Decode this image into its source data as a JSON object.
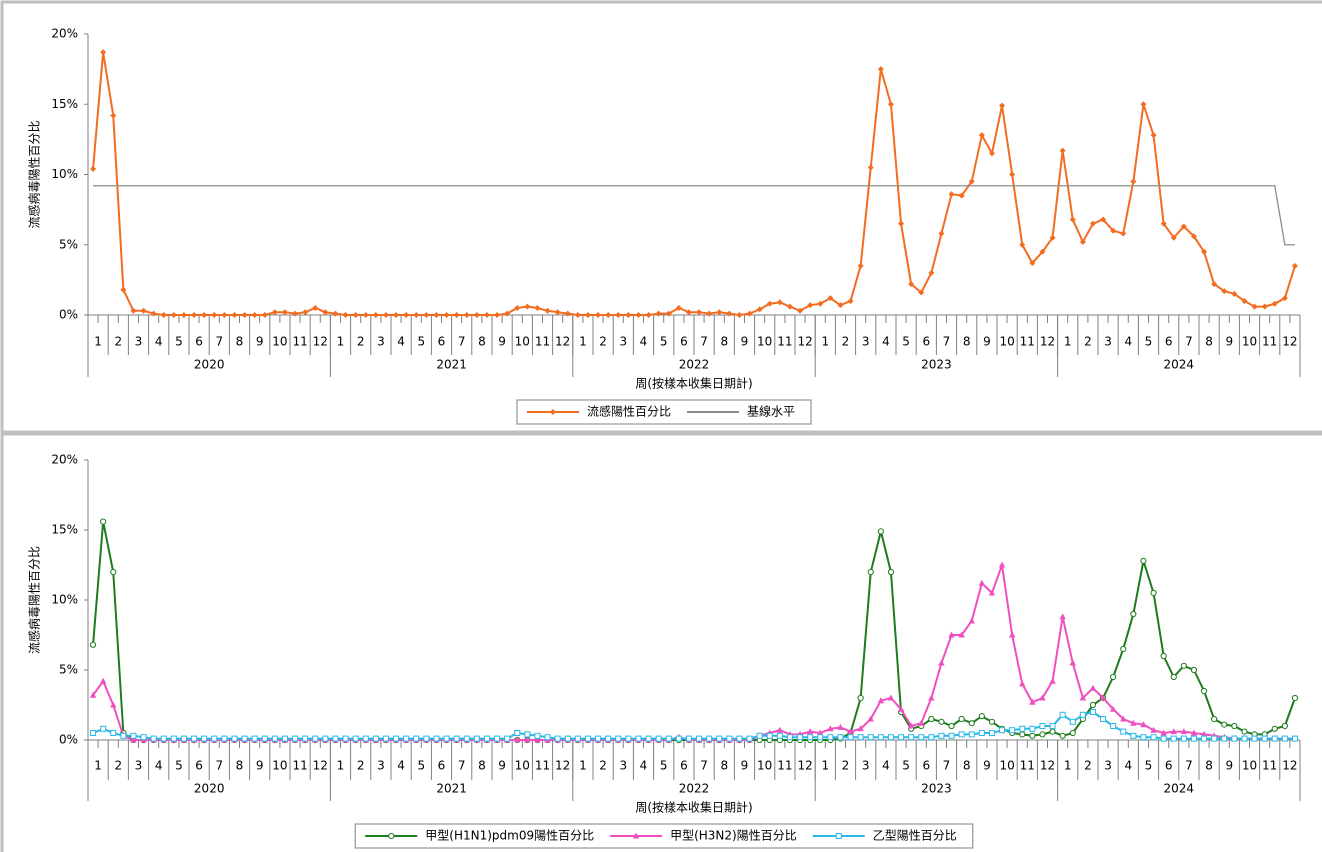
{
  "chart_data": [
    {
      "type": "line",
      "y_label": "流感病毒陽性百分比",
      "x_label": "周(按樣本收集日期計)",
      "categories": [
        "1",
        null,
        "2",
        null,
        "3",
        null,
        "4",
        null,
        "5",
        null,
        "6",
        null,
        "7",
        null,
        "8",
        null,
        "9",
        null,
        "10",
        null,
        "11",
        null,
        "12",
        null,
        "1",
        null,
        "2",
        null,
        "3",
        null,
        "4",
        null,
        "5",
        null,
        "6",
        null,
        "7",
        null,
        "8",
        null,
        "9",
        null,
        "10",
        null,
        "11",
        null,
        "12",
        null,
        "1",
        null,
        "2",
        null,
        "3",
        null,
        "4",
        null,
        "5",
        null,
        "6",
        null,
        "7",
        null,
        "8",
        null,
        "9",
        null,
        "10",
        null,
        "11",
        null,
        "12",
        null,
        "1",
        null,
        "2",
        null,
        "3",
        null,
        "4",
        null,
        "5",
        null,
        "6",
        null,
        "7",
        null,
        "8",
        null,
        "9",
        null,
        "10",
        null,
        "11",
        null,
        "12",
        null,
        "1",
        null,
        "2",
        null,
        "3",
        null,
        "4",
        null,
        "5",
        null,
        "6",
        null,
        "7",
        null,
        "8",
        null,
        "9",
        null,
        "10",
        null,
        "11",
        null,
        "12",
        null
      ],
      "x_groups": [
        "2020",
        "2021",
        "2022",
        "2023",
        "2024"
      ],
      "ylim": [
        0,
        20
      ],
      "yticks": [
        {
          "value": 0,
          "label": "0%"
        },
        {
          "value": 5,
          "label": "5%"
        },
        {
          "value": 10,
          "label": "10%"
        },
        {
          "value": 15,
          "label": "15%"
        },
        {
          "value": 20,
          "label": "20%"
        }
      ],
      "series": [
        {
          "name": "流感陽性百分比",
          "color": "#f26d21",
          "marker": "diamond",
          "values": [
            10.4,
            18.7,
            14.2,
            1.8,
            0.3,
            0.3,
            0.1,
            0,
            0,
            0,
            0,
            0,
            0,
            0,
            0,
            0,
            0,
            0,
            0.2,
            0.2,
            0.1,
            0.2,
            0.5,
            0.2,
            0.1,
            0,
            0,
            0,
            0,
            0,
            0,
            0,
            0,
            0,
            0,
            0,
            0,
            0,
            0,
            0,
            0,
            0.1,
            0.5,
            0.6,
            0.5,
            0.3,
            0.2,
            0.1,
            0,
            0,
            0,
            0,
            0,
            0,
            0,
            0,
            0.1,
            0.1,
            0.5,
            0.2,
            0.2,
            0.1,
            0.2,
            0.1,
            0,
            0.1,
            0.4,
            0.8,
            0.9,
            0.6,
            0.3,
            0.7,
            0.8,
            1.2,
            0.7,
            1,
            3.5,
            10.5,
            17.5,
            15,
            6.5,
            2.2,
            1.6,
            3,
            5.8,
            8.6,
            8.5,
            9.5,
            12.8,
            11.5,
            14.9,
            10,
            5,
            3.7,
            4.5,
            5.5,
            11.7,
            6.8,
            5.2,
            6.5,
            6.8,
            6,
            5.8,
            9.5,
            15,
            12.8,
            6.5,
            5.5,
            6.3,
            5.6,
            4.5,
            2.2,
            1.7,
            1.5,
            1,
            0.6,
            0.6,
            0.8,
            1.2,
            3.5
          ]
        },
        {
          "name": "基線水平",
          "color": "#8c8c8c",
          "marker": "none",
          "values": [
            9.2,
            9.2,
            9.2,
            9.2,
            9.2,
            9.2,
            9.2,
            9.2,
            9.2,
            9.2,
            9.2,
            9.2,
            9.2,
            9.2,
            9.2,
            9.2,
            9.2,
            9.2,
            9.2,
            9.2,
            9.2,
            9.2,
            9.2,
            9.2,
            9.2,
            9.2,
            9.2,
            9.2,
            9.2,
            9.2,
            9.2,
            9.2,
            9.2,
            9.2,
            9.2,
            9.2,
            9.2,
            9.2,
            9.2,
            9.2,
            9.2,
            9.2,
            9.2,
            9.2,
            9.2,
            9.2,
            9.2,
            9.2,
            9.2,
            9.2,
            9.2,
            9.2,
            9.2,
            9.2,
            9.2,
            9.2,
            9.2,
            9.2,
            9.2,
            9.2,
            9.2,
            9.2,
            9.2,
            9.2,
            9.2,
            9.2,
            9.2,
            9.2,
            9.2,
            9.2,
            9.2,
            9.2,
            9.2,
            9.2,
            9.2,
            9.2,
            9.2,
            9.2,
            9.2,
            9.2,
            9.2,
            9.2,
            9.2,
            9.2,
            9.2,
            9.2,
            9.2,
            9.2,
            9.2,
            9.2,
            9.2,
            9.2,
            9.2,
            9.2,
            9.2,
            9.2,
            9.2,
            9.2,
            9.2,
            9.2,
            9.2,
            9.2,
            9.2,
            9.2,
            9.2,
            9.2,
            9.2,
            9.2,
            9.2,
            9.2,
            9.2,
            9.2,
            9.2,
            9.2,
            9.2,
            9.2,
            9.2,
            9.2,
            5,
            5
          ]
        }
      ]
    },
    {
      "type": "line",
      "y_label": "流感病毒陽性百分比",
      "x_label": "周(按樣本收集日期計)",
      "categories": [
        "1",
        null,
        "2",
        null,
        "3",
        null,
        "4",
        null,
        "5",
        null,
        "6",
        null,
        "7",
        null,
        "8",
        null,
        "9",
        null,
        "10",
        null,
        "11",
        null,
        "12",
        null,
        "1",
        null,
        "2",
        null,
        "3",
        null,
        "4",
        null,
        "5",
        null,
        "6",
        null,
        "7",
        null,
        "8",
        null,
        "9",
        null,
        "10",
        null,
        "11",
        null,
        "12",
        null,
        "1",
        null,
        "2",
        null,
        "3",
        null,
        "4",
        null,
        "5",
        null,
        "6",
        null,
        "7",
        null,
        "8",
        null,
        "9",
        null,
        "10",
        null,
        "11",
        null,
        "12",
        null,
        "1",
        null,
        "2",
        null,
        "3",
        null,
        "4",
        null,
        "5",
        null,
        "6",
        null,
        "7",
        null,
        "8",
        null,
        "9",
        null,
        "10",
        null,
        "11",
        null,
        "12",
        null,
        "1",
        null,
        "2",
        null,
        "3",
        null,
        "4",
        null,
        "5",
        null,
        "6",
        null,
        "7",
        null,
        "8",
        null,
        "9",
        null,
        "10",
        null,
        "11",
        null,
        "12",
        null
      ],
      "x_groups": [
        "2020",
        "2021",
        "2022",
        "2023",
        "2024"
      ],
      "ylim": [
        0,
        20
      ],
      "yticks": [
        {
          "value": 0,
          "label": "0%"
        },
        {
          "value": 5,
          "label": "5%"
        },
        {
          "value": 10,
          "label": "10%"
        },
        {
          "value": 15,
          "label": "15%"
        },
        {
          "value": 20,
          "label": "20%"
        }
      ],
      "series": [
        {
          "name": "甲型(H1N1)pdm09陽性百分比",
          "color": "#1e7b1e",
          "marker": "circle",
          "values": [
            6.8,
            15.6,
            12,
            0.5,
            0,
            0,
            0,
            0,
            0,
            0,
            0,
            0,
            0,
            0,
            0,
            0,
            0,
            0,
            0,
            0,
            0,
            0,
            0,
            0,
            0,
            0,
            0,
            0,
            0,
            0,
            0,
            0,
            0,
            0,
            0,
            0,
            0,
            0,
            0,
            0,
            0,
            0,
            0,
            0,
            0,
            0,
            0,
            0,
            0,
            0,
            0,
            0,
            0,
            0,
            0,
            0,
            0,
            0,
            0,
            0,
            0,
            0,
            0,
            0,
            0,
            0,
            0,
            0,
            0,
            0,
            0,
            0,
            0,
            0,
            0.1,
            0.5,
            3,
            12,
            14.9,
            12,
            2,
            0.8,
            1,
            1.5,
            1.3,
            1,
            1.5,
            1.2,
            1.7,
            1.3,
            0.8,
            0.5,
            0.4,
            0.3,
            0.4,
            0.6,
            0.3,
            0.5,
            1.5,
            2.5,
            3,
            4.5,
            6.5,
            9,
            12.8,
            10.5,
            6,
            4.5,
            5.3,
            5,
            3.5,
            1.5,
            1.1,
            1,
            0.6,
            0.4,
            0.4,
            0.8,
            1,
            3
          ]
        },
        {
          "name": "甲型(H3N2)陽性百分比",
          "color": "#f04fc0",
          "marker": "triangle",
          "values": [
            3.2,
            4.2,
            2.5,
            0.3,
            0,
            0,
            0,
            0,
            0,
            0,
            0,
            0,
            0,
            0,
            0,
            0,
            0,
            0,
            0,
            0,
            0,
            0,
            0,
            0,
            0,
            0,
            0,
            0,
            0,
            0,
            0,
            0,
            0,
            0,
            0,
            0,
            0,
            0,
            0,
            0,
            0,
            0,
            0,
            0,
            0,
            0,
            0,
            0,
            0,
            0,
            0,
            0,
            0,
            0,
            0,
            0,
            0,
            0,
            0.2,
            0,
            0,
            0,
            0,
            0,
            0,
            0,
            0.3,
            0.5,
            0.7,
            0.4,
            0.4,
            0.6,
            0.5,
            0.8,
            0.9,
            0.6,
            0.8,
            1.5,
            2.8,
            3,
            2.2,
            1,
            1.2,
            3,
            5.5,
            7.5,
            7.5,
            8.5,
            11.2,
            10.5,
            12.5,
            7.5,
            4,
            2.7,
            3,
            4.2,
            8.8,
            5.5,
            3,
            3.7,
            3,
            2.2,
            1.5,
            1.2,
            1.1,
            0.7,
            0.5,
            0.6,
            0.6,
            0.5,
            0.4,
            0.3,
            0.2,
            0.1,
            0.1,
            0.1,
            0.1,
            0.1,
            0.1,
            0.1
          ]
        },
        {
          "name": "乙型陽性百分比",
          "color": "#2ab8e8",
          "marker": "square",
          "values": [
            0.5,
            0.8,
            0.5,
            0.3,
            0.3,
            0.2,
            0.1,
            0.1,
            0.1,
            0.1,
            0.1,
            0.1,
            0.1,
            0.1,
            0.1,
            0.1,
            0.1,
            0.1,
            0.1,
            0.1,
            0.1,
            0.1,
            0.1,
            0.1,
            0.1,
            0.1,
            0.1,
            0.1,
            0.1,
            0.1,
            0.1,
            0.1,
            0.1,
            0.1,
            0.1,
            0.1,
            0.1,
            0.1,
            0.1,
            0.1,
            0.1,
            0.1,
            0.5,
            0.4,
            0.3,
            0.2,
            0.1,
            0.1,
            0.1,
            0.1,
            0.1,
            0.1,
            0.1,
            0.1,
            0.1,
            0.1,
            0.1,
            0.1,
            0.1,
            0.1,
            0.1,
            0.1,
            0.1,
            0.1,
            0.1,
            0.1,
            0.3,
            0.3,
            0.3,
            0.2,
            0.2,
            0.2,
            0.2,
            0.2,
            0.2,
            0.2,
            0.2,
            0.2,
            0.2,
            0.2,
            0.2,
            0.2,
            0.2,
            0.2,
            0.3,
            0.3,
            0.4,
            0.4,
            0.5,
            0.5,
            0.7,
            0.7,
            0.8,
            0.8,
            1,
            1,
            1.8,
            1.3,
            1.8,
            2,
            1.5,
            1,
            0.6,
            0.3,
            0.2,
            0.2,
            0.1,
            0.1,
            0.1,
            0.1,
            0.1,
            0.1,
            0.1,
            0.1,
            0.1,
            0.1,
            0.1,
            0.1,
            0.1,
            0.1
          ]
        }
      ]
    }
  ]
}
